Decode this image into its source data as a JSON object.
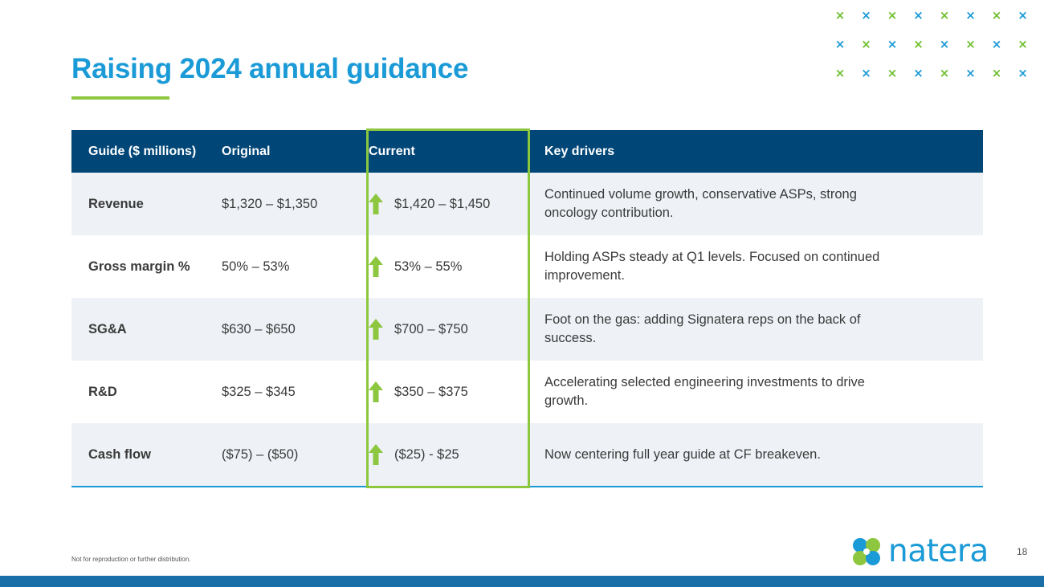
{
  "slide": {
    "title": "Raising 2024 annual guidance",
    "footnote": "Not for reproduction or further distribution.",
    "page_number": "18",
    "logo_text": "natera"
  },
  "colors": {
    "title_blue": "#1a9ad6",
    "accent_green": "#8dc63f",
    "header_navy": "#004677",
    "row_shade": "#eef2f6",
    "footer_bar": "#1b6fa8",
    "x_green": "#6dbf2e",
    "x_blue": "#1a9ad6"
  },
  "table": {
    "headers": {
      "guide": "Guide ($ millions)",
      "original": "Original",
      "current": "Current",
      "drivers": "Key drivers"
    },
    "rows": [
      {
        "guide": "Revenue",
        "original": "$1,320 – $1,350",
        "current": "$1,420 – $1,450",
        "drivers": "Continued volume growth, conservative ASPs, strong oncology contribution.",
        "current_icon": "up-arrow-icon"
      },
      {
        "guide": "Gross margin %",
        "original": "50% – 53%",
        "current": "53% – 55%",
        "drivers": "Holding ASPs steady at Q1 levels. Focused on continued improvement.",
        "current_icon": "up-arrow-icon"
      },
      {
        "guide": "SG&A",
        "original": "$630 – $650",
        "current": "$700 – $750",
        "drivers": "Foot on the gas: adding Signatera reps on the back of success.",
        "current_icon": "up-arrow-icon"
      },
      {
        "guide": "R&D",
        "original": "$325 – $345",
        "current": "$350 – $375",
        "drivers": "Accelerating selected engineering investments to drive growth.",
        "current_icon": "up-arrow-icon"
      },
      {
        "guide": "Cash flow",
        "original": "($75) – ($50)",
        "current": "($25) - $25",
        "drivers": "Now centering full year guide at CF breakeven.",
        "current_icon": "up-arrow-icon"
      }
    ]
  }
}
